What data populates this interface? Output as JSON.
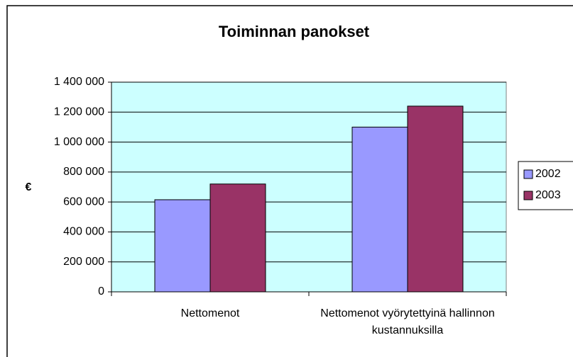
{
  "chart_data": {
    "type": "bar",
    "title": "Toiminnan panokset",
    "y_label": "€",
    "categories": [
      "Nettomenot",
      "Nettomenot vyörytettyinä hallinnon kustannuksilla"
    ],
    "series": [
      {
        "name": "2002",
        "color": "#9999ff",
        "values": [
          615000,
          1100000
        ]
      },
      {
        "name": "2003",
        "color": "#993366",
        "values": [
          720000,
          1240000
        ]
      }
    ],
    "ylim": [
      0,
      1400000
    ],
    "yticks": [
      0,
      {
        "value": 200000,
        "label": "200 000"
      },
      {
        "value": 400000,
        "label": "400 000"
      },
      {
        "value": 600000,
        "label": "600 000"
      },
      {
        "value": 800000,
        "label": "800 000"
      },
      {
        "value": 1000000,
        "label": "1 000 000"
      },
      {
        "value": 1200000,
        "label": "1 200 000"
      },
      {
        "value": 1400000,
        "label": "1 400 000"
      }
    ],
    "grid": true,
    "plot_background": "#ccffff",
    "legend": "right"
  }
}
